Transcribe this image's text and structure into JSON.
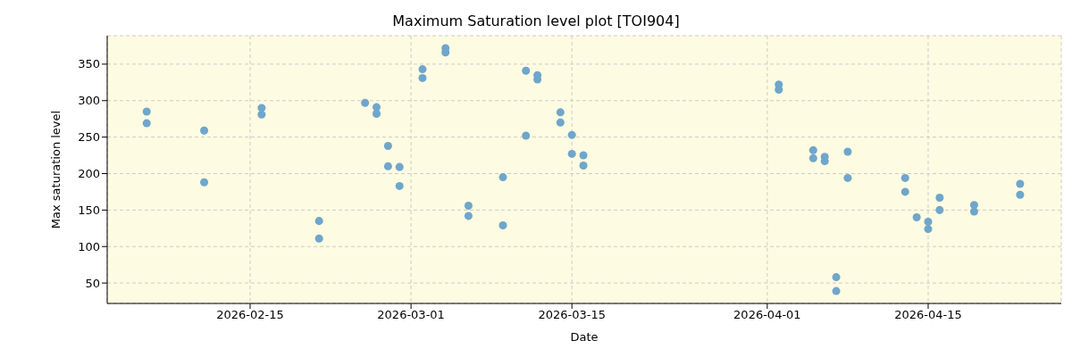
{
  "chart_data": {
    "type": "scatter",
    "title": "Maximum Saturation level plot [TOI904]",
    "xlabel": "Date",
    "ylabel": "Max saturation level",
    "x": [
      "2026-02-06",
      "2026-02-06",
      "2026-02-11",
      "2026-02-11",
      "2026-02-16",
      "2026-02-16",
      "2026-02-21",
      "2026-02-21",
      "2026-02-25",
      "2026-02-26",
      "2026-02-26",
      "2026-02-27",
      "2026-02-27",
      "2026-02-28",
      "2026-02-28",
      "2026-03-02",
      "2026-03-02",
      "2026-03-04",
      "2026-03-04",
      "2026-03-06",
      "2026-03-06",
      "2026-03-09",
      "2026-03-09",
      "2026-03-11",
      "2026-03-11",
      "2026-03-12",
      "2026-03-12",
      "2026-03-14",
      "2026-03-14",
      "2026-03-15",
      "2026-03-15",
      "2026-03-16",
      "2026-03-16",
      "2026-04-02",
      "2026-04-02",
      "2026-04-05",
      "2026-04-05",
      "2026-04-06",
      "2026-04-06",
      "2026-04-07",
      "2026-04-07",
      "2026-04-08",
      "2026-04-08",
      "2026-04-13",
      "2026-04-13",
      "2026-04-14",
      "2026-04-15",
      "2026-04-15",
      "2026-04-16",
      "2026-04-16",
      "2026-04-19",
      "2026-04-19",
      "2026-04-23",
      "2026-04-23"
    ],
    "values": [
      285,
      269,
      259,
      188,
      290,
      281,
      135,
      111,
      297,
      291,
      282,
      238,
      210,
      209,
      183,
      343,
      331,
      372,
      366,
      156,
      142,
      195,
      129,
      341,
      252,
      335,
      329,
      284,
      270,
      253,
      227,
      225,
      211,
      322,
      315,
      232,
      221,
      223,
      217,
      58,
      39,
      230,
      194,
      194,
      175,
      140,
      134,
      124,
      167,
      150,
      157,
      148,
      186,
      171
    ],
    "color": "#6fa6cc",
    "marker": "circle",
    "grid": true,
    "xlim": [
      "2026-02-02T13:30",
      "2026-04-26T14:00"
    ],
    "xticks": [
      "2026-02-15",
      "2026-03-01",
      "2026-03-15",
      "2026-04-01",
      "2026-04-15"
    ],
    "ylim": [
      22,
      389
    ],
    "yticks": [
      50,
      100,
      150,
      200,
      250,
      300,
      350
    ]
  }
}
